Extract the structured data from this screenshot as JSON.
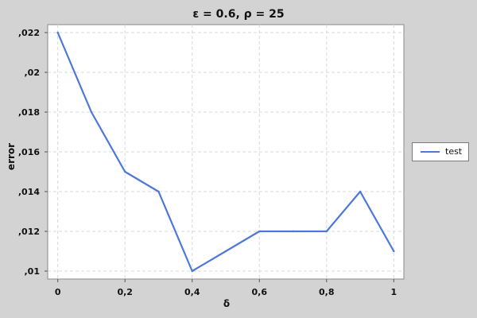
{
  "chart_data": {
    "type": "line",
    "title": "ε = 0.6, ρ = 25",
    "xlabel": "δ",
    "ylabel": "error",
    "x": [
      0,
      0.1,
      0.2,
      0.3,
      0.4,
      0.5,
      0.6,
      0.7,
      0.8,
      0.9,
      1.0
    ],
    "series": [
      {
        "name": "test",
        "values": [
          0.022,
          0.018,
          0.015,
          0.014,
          0.01,
          0.011,
          0.012,
          0.012,
          0.012,
          0.014,
          0.011
        ],
        "color": "#4e78d8"
      }
    ],
    "xlim": [
      -0.03,
      1.03
    ],
    "ylim": [
      0.0096,
      0.0224
    ],
    "xticks": [
      {
        "value": 0,
        "label": "0"
      },
      {
        "value": 0.2,
        "label": "0,2"
      },
      {
        "value": 0.4,
        "label": "0,4"
      },
      {
        "value": 0.6,
        "label": "0,6"
      },
      {
        "value": 0.8,
        "label": "0,8"
      },
      {
        "value": 1.0,
        "label": "1"
      }
    ],
    "yticks": [
      {
        "value": 0.01,
        "label": ",01"
      },
      {
        "value": 0.012,
        "label": ",012"
      },
      {
        "value": 0.014,
        "label": ",014"
      },
      {
        "value": 0.016,
        "label": ",016"
      },
      {
        "value": 0.018,
        "label": ",018"
      },
      {
        "value": 0.02,
        "label": ",02"
      },
      {
        "value": 0.022,
        "label": ",022"
      }
    ],
    "grid": true,
    "legend_position": "right"
  }
}
